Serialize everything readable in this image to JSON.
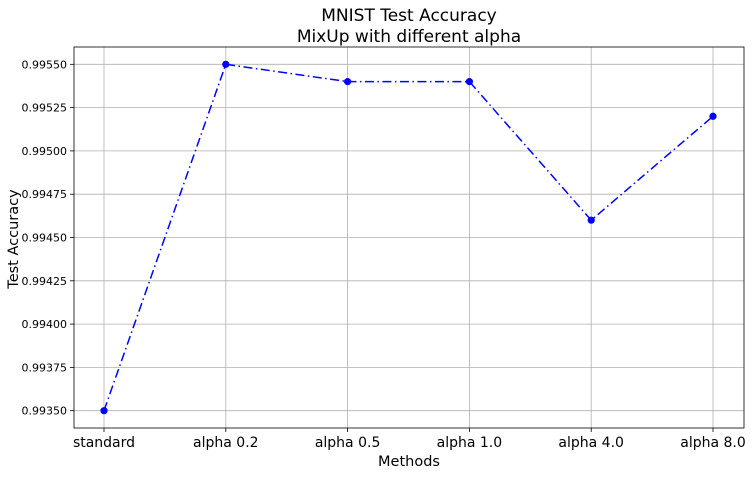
{
  "chart_data": {
    "type": "line",
    "title": "MNIST Test Accuracy",
    "subtitle": "MixUp with different alpha",
    "xlabel": "Methods",
    "ylabel": "Test Accuracy",
    "categories": [
      "standard",
      "alpha 0.2",
      "alpha 0.5",
      "alpha 1.0",
      "alpha 4.0",
      "alpha 8.0"
    ],
    "series": [
      {
        "values": [
          0.9935,
          0.9955,
          0.9954,
          0.9954,
          0.9946,
          0.9952
        ],
        "color": "#0000ff",
        "line_style": "dash-dot",
        "marker": "circle"
      }
    ],
    "y_ticks": [
      "0.99350",
      "0.99375",
      "0.99400",
      "0.99425",
      "0.99450",
      "0.99475",
      "0.99500",
      "0.99525",
      "0.99550"
    ],
    "ylim": [
      0.9934,
      0.9956
    ],
    "grid": true,
    "legend": "none"
  }
}
